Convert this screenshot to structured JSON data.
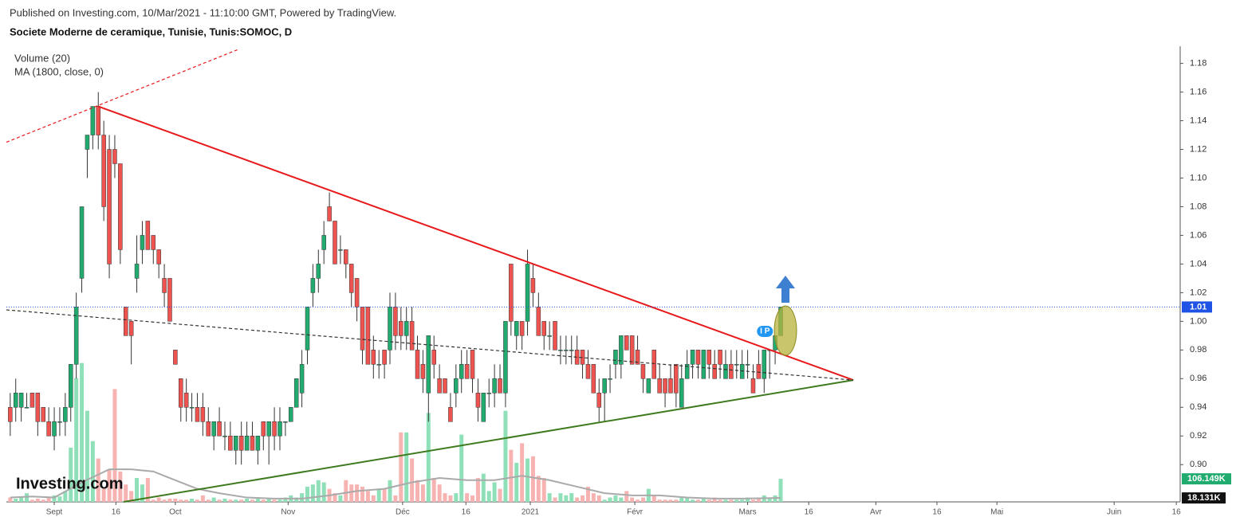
{
  "header": {
    "published": "Published on Investing.com, 10/Mar/2021 - 11:10:00 GMT, Powered by TradingView.",
    "logo": "Investing.com"
  },
  "chart_data": {
    "type": "candlestick",
    "title": "Societe Moderne de ceramique, Tunisie, Tunis:SOMOC, D",
    "indicators": [
      "Volume (20)",
      "MA (1800, close, 0)"
    ],
    "up_color": "#22ab6f",
    "down_color": "#ef5350",
    "up_volume_color": "#8fe0b8",
    "down_volume_color": "#f7b3b1",
    "ylim": [
      0.874,
      1.192
    ],
    "yticks": [
      {
        "value": 0.9,
        "label": "0.90"
      },
      0.92,
      0.94,
      0.96,
      0.98,
      {
        "value": 1.0,
        "label": "1.00"
      },
      1.02,
      1.04,
      1.06,
      1.08,
      {
        "value": 1.1,
        "label": "1.10"
      },
      1.12,
      1.14,
      1.16,
      1.18
    ],
    "xlim": [
      -8.7,
      204.6
    ],
    "xticks": [
      {
        "value": 0,
        "label": "Sept"
      },
      {
        "value": 11.2,
        "label": "16"
      },
      {
        "value": 22,
        "label": "Oct"
      },
      {
        "value": 42.5,
        "label": "Nov"
      },
      {
        "value": 63.3,
        "label": "Déc"
      },
      {
        "value": 74.8,
        "label": "16"
      },
      {
        "value": 86.5,
        "label": "2021"
      },
      {
        "value": 105.5,
        "label": "Févr"
      },
      {
        "value": 126,
        "label": "Mars"
      },
      {
        "value": 137.1,
        "label": "16"
      },
      {
        "value": 149.3,
        "label": "Avr"
      },
      {
        "value": 160.4,
        "label": "16"
      },
      {
        "value": 171.3,
        "label": "Mai"
      },
      {
        "value": 192.6,
        "label": "Juin"
      },
      {
        "value": 203.9,
        "label": "16"
      }
    ],
    "volume_lim": [
      0,
      2100
    ],
    "x": [
      -8,
      -7,
      -6,
      -5,
      -4,
      -3,
      -2,
      -1,
      0,
      1,
      2,
      3,
      4,
      5,
      6,
      7,
      8,
      9,
      10,
      11,
      12,
      13,
      14,
      15,
      16,
      17,
      18,
      19,
      20,
      21,
      22,
      23,
      24,
      25,
      26,
      27,
      28,
      29,
      30,
      31,
      32,
      33,
      34,
      35,
      36,
      37,
      38,
      39,
      40,
      41,
      42,
      43,
      44,
      45,
      46,
      47,
      48,
      49,
      50,
      51,
      52,
      53,
      54,
      55,
      56,
      57,
      58,
      59,
      60,
      61,
      62,
      63,
      64,
      65,
      66,
      67,
      68,
      69,
      70,
      71,
      72,
      73,
      74,
      75,
      76,
      77,
      78,
      79,
      80,
      81,
      82,
      83,
      84,
      85,
      86,
      87,
      88,
      89,
      90,
      91,
      92,
      93,
      94,
      95,
      96,
      97,
      98,
      99,
      100,
      101,
      102,
      103,
      104,
      105,
      106,
      107,
      108,
      109,
      110,
      111,
      112,
      113,
      114,
      115,
      116,
      117,
      118,
      119,
      120,
      121,
      122,
      123,
      124,
      125,
      126,
      127,
      128,
      129,
      130,
      131,
      132
    ],
    "open": [
      0.94,
      0.94,
      0.94,
      0.94,
      0.95,
      0.95,
      0.94,
      0.93,
      0.92,
      0.93,
      0.93,
      0.94,
      0.97,
      1.03,
      1.12,
      1.13,
      1.15,
      1.13,
      1.12,
      1.12,
      1.11,
      1.01,
      1.0,
      1.03,
      1.05,
      1.07,
      1.06,
      1.05,
      1.03,
      1.03,
      0.98,
      0.96,
      0.95,
      0.94,
      0.94,
      0.94,
      0.93,
      0.92,
      0.93,
      0.92,
      0.92,
      0.91,
      0.92,
      0.91,
      0.92,
      0.91,
      0.93,
      0.92,
      0.93,
      0.92,
      0.93,
      0.93,
      0.94,
      0.95,
      0.98,
      1.02,
      1.03,
      1.05,
      1.08,
      1.07,
      1.05,
      1.05,
      1.04,
      1.03,
      1.01,
      1.01,
      0.98,
      0.97,
      0.98,
      0.98,
      1.01,
      1.0,
      0.99,
      1.0,
      0.98,
      0.97,
      0.95,
      0.98,
      0.96,
      0.96,
      0.94,
      0.95,
      0.96,
      0.97,
      0.98,
      0.95,
      0.93,
      0.95,
      0.95,
      0.96,
      0.95,
      1.04,
      0.99,
      1.0,
      1.0,
      1.03,
      1.01,
      1.0,
      0.99,
      1.0,
      0.98,
      0.98,
      0.98,
      0.98,
      0.98,
      0.97,
      0.97,
      0.95,
      0.95,
      0.96,
      0.97,
      0.97,
      0.99,
      0.99,
      0.98,
      0.97,
      0.95,
      0.98,
      0.96,
      0.96,
      0.96,
      0.97,
      0.94,
      0.96,
      0.97,
      0.98,
      0.96,
      0.98,
      0.97,
      0.98,
      0.96,
      0.97,
      0.97,
      0.96,
      0.97,
      0.96,
      0.97,
      0.96,
      0.98,
      0.98,
      0.99
    ],
    "high": [
      0.95,
      0.96,
      0.95,
      0.95,
      0.95,
      0.95,
      0.94,
      0.94,
      0.94,
      0.94,
      0.95,
      0.97,
      1.02,
      1.08,
      1.13,
      1.15,
      1.16,
      1.14,
      1.13,
      1.13,
      1.11,
      1.01,
      1.0,
      1.06,
      1.07,
      1.07,
      1.06,
      1.05,
      1.04,
      1.03,
      0.98,
      0.96,
      0.96,
      0.95,
      0.95,
      0.95,
      0.94,
      0.93,
      0.94,
      0.93,
      0.93,
      0.92,
      0.93,
      0.93,
      0.93,
      0.92,
      0.93,
      0.93,
      0.94,
      0.94,
      0.93,
      0.94,
      0.96,
      0.98,
      1.01,
      1.04,
      1.05,
      1.07,
      1.09,
      1.07,
      1.06,
      1.05,
      1.04,
      1.03,
      1.01,
      1.01,
      0.99,
      0.98,
      0.98,
      1.02,
      1.02,
      1.01,
      1.01,
      1.01,
      0.99,
      0.98,
      0.99,
      0.99,
      0.97,
      0.96,
      0.95,
      0.97,
      0.98,
      0.98,
      0.98,
      0.96,
      0.95,
      0.96,
      0.97,
      0.97,
      1.0,
      1.04,
      1.0,
      1.0,
      1.05,
      1.04,
      1.02,
      1.0,
      1.0,
      1.0,
      0.99,
      0.99,
      0.99,
      0.99,
      0.98,
      0.98,
      0.97,
      0.96,
      0.96,
      0.97,
      0.98,
      0.99,
      0.99,
      0.99,
      0.99,
      0.97,
      0.96,
      0.98,
      0.97,
      0.96,
      0.97,
      0.97,
      0.97,
      0.98,
      0.98,
      0.98,
      0.98,
      0.98,
      0.98,
      0.98,
      0.98,
      0.98,
      0.98,
      0.98,
      0.98,
      0.97,
      0.98,
      0.98,
      0.98,
      0.99,
      1.01
    ],
    "low": [
      0.92,
      0.93,
      0.93,
      0.94,
      0.94,
      0.92,
      0.93,
      0.92,
      0.91,
      0.92,
      0.92,
      0.93,
      0.96,
      1.02,
      1.1,
      1.12,
      1.12,
      1.07,
      1.03,
      1.1,
      1.04,
      0.99,
      0.97,
      1.02,
      1.04,
      1.05,
      1.04,
      1.03,
      1.01,
      1.0,
      0.97,
      0.93,
      0.93,
      0.93,
      0.93,
      0.92,
      0.92,
      0.91,
      0.92,
      0.91,
      0.91,
      0.9,
      0.9,
      0.91,
      0.91,
      0.9,
      0.91,
      0.9,
      0.91,
      0.91,
      0.92,
      0.93,
      0.94,
      0.94,
      0.97,
      1.01,
      1.02,
      1.04,
      1.07,
      1.04,
      1.04,
      1.03,
      1.01,
      1.0,
      0.97,
      0.97,
      0.96,
      0.96,
      0.96,
      0.97,
      0.98,
      0.98,
      0.98,
      0.98,
      0.96,
      0.95,
      0.93,
      0.96,
      0.95,
      0.95,
      0.93,
      0.94,
      0.95,
      0.96,
      0.95,
      0.93,
      0.93,
      0.94,
      0.94,
      0.95,
      0.94,
      0.99,
      0.98,
      0.98,
      0.99,
      1.01,
      0.99,
      0.98,
      0.98,
      0.98,
      0.97,
      0.97,
      0.97,
      0.97,
      0.96,
      0.96,
      0.95,
      0.93,
      0.93,
      0.95,
      0.96,
      0.96,
      0.98,
      0.97,
      0.97,
      0.95,
      0.95,
      0.96,
      0.95,
      0.94,
      0.95,
      0.94,
      0.94,
      0.96,
      0.96,
      0.96,
      0.96,
      0.96,
      0.96,
      0.96,
      0.96,
      0.96,
      0.96,
      0.96,
      0.96,
      0.95,
      0.96,
      0.95,
      0.96,
      0.97,
      0.99
    ],
    "close": [
      0.93,
      0.95,
      0.95,
      0.94,
      0.94,
      0.93,
      0.93,
      0.92,
      0.93,
      0.93,
      0.94,
      0.97,
      1.01,
      1.08,
      1.13,
      1.15,
      1.13,
      1.08,
      1.04,
      1.11,
      1.05,
      0.99,
      0.99,
      1.04,
      1.06,
      1.05,
      1.05,
      1.04,
      1.02,
      1.0,
      0.97,
      0.94,
      0.94,
      0.94,
      0.93,
      0.93,
      0.92,
      0.93,
      0.92,
      0.92,
      0.91,
      0.92,
      0.91,
      0.92,
      0.91,
      0.92,
      0.92,
      0.93,
      0.92,
      0.93,
      0.93,
      0.94,
      0.96,
      0.97,
      1.01,
      1.03,
      1.04,
      1.06,
      1.07,
      1.04,
      1.05,
      1.04,
      1.02,
      1.01,
      0.98,
      0.97,
      0.97,
      0.97,
      0.97,
      1.01,
      0.99,
      0.99,
      1.0,
      0.98,
      0.96,
      0.96,
      0.99,
      0.97,
      0.95,
      0.95,
      0.93,
      0.96,
      0.97,
      0.96,
      0.96,
      0.94,
      0.95,
      0.95,
      0.96,
      0.95,
      1.0,
      1.0,
      1.0,
      0.99,
      1.04,
      1.02,
      0.99,
      0.99,
      0.99,
      0.98,
      0.98,
      0.98,
      0.98,
      0.97,
      0.97,
      0.96,
      0.95,
      0.94,
      0.96,
      0.96,
      0.98,
      0.99,
      0.98,
      0.97,
      0.97,
      0.96,
      0.96,
      0.96,
      0.95,
      0.95,
      0.95,
      0.95,
      0.96,
      0.97,
      0.98,
      0.97,
      0.98,
      0.97,
      0.96,
      0.97,
      0.97,
      0.96,
      0.97,
      0.97,
      0.97,
      0.95,
      0.96,
      0.98,
      0.98,
      0.99,
      1.01
    ],
    "volume": [
      20,
      15,
      25,
      40,
      10,
      15,
      10,
      20,
      30,
      25,
      50,
      250,
      570,
      640,
      420,
      280,
      200,
      60,
      150,
      520,
      140,
      80,
      50,
      110,
      80,
      110,
      10,
      20,
      10,
      15,
      15,
      10,
      10,
      15,
      10,
      30,
      10,
      20,
      10,
      15,
      10,
      10,
      10,
      15,
      10,
      15,
      10,
      15,
      10,
      10,
      20,
      30,
      20,
      40,
      70,
      80,
      100,
      90,
      60,
      40,
      30,
      100,
      80,
      80,
      70,
      50,
      30,
      60,
      60,
      100,
      30,
      320,
      320,
      200,
      100,
      80,
      410,
      110,
      80,
      40,
      30,
      40,
      310,
      40,
      30,
      110,
      130,
      50,
      90,
      60,
      420,
      240,
      180,
      270,
      200,
      210,
      120,
      110,
      40,
      20,
      40,
      30,
      40,
      20,
      30,
      70,
      40,
      30,
      10,
      20,
      30,
      20,
      50,
      20,
      10,
      20,
      60,
      30,
      10,
      10,
      10,
      10,
      20,
      20,
      10,
      10,
      20,
      10,
      20,
      10,
      10,
      10,
      10,
      10,
      20,
      10,
      20,
      30,
      20,
      30,
      106.149
    ],
    "volume_last_label": "106.149K",
    "volume_ma": {
      "color": "#aaaaaa",
      "x": [
        -8,
        -4,
        0,
        5,
        10,
        14,
        18,
        22,
        26,
        30,
        35,
        40,
        45,
        50,
        55,
        60,
        65,
        70,
        75,
        80,
        85,
        90,
        95,
        100,
        105,
        110,
        115,
        120,
        125,
        132
      ],
      "values": [
        20,
        25,
        20,
        90,
        150,
        150,
        140,
        100,
        60,
        40,
        20,
        15,
        15,
        30,
        50,
        60,
        90,
        110,
        100,
        100,
        120,
        100,
        70,
        40,
        30,
        30,
        20,
        15,
        15,
        18.131
      ],
      "last_label": "18.131K"
    },
    "price_line": {
      "value": 1.01,
      "label": "1.01",
      "color": "#1e53e5"
    },
    "trendlines": [
      {
        "color": "#e8191b",
        "dash": false,
        "x": [
          8,
          145.2
        ],
        "y": [
          1.15,
          0.959
        ]
      },
      {
        "color": "#3f7a1f",
        "dash": false,
        "x": [
          12.6,
          145.2
        ],
        "y": [
          0.874,
          0.959
        ]
      },
      {
        "color": "#333333",
        "dash": true,
        "x": [
          -8.7,
          145.2
        ],
        "y": [
          1.008,
          0.959
        ]
      },
      {
        "color": "#e8191b",
        "dash": true,
        "x": [
          -8.7,
          33.6
        ],
        "y": [
          1.125,
          1.19
        ]
      }
    ],
    "marker": "I P"
  }
}
